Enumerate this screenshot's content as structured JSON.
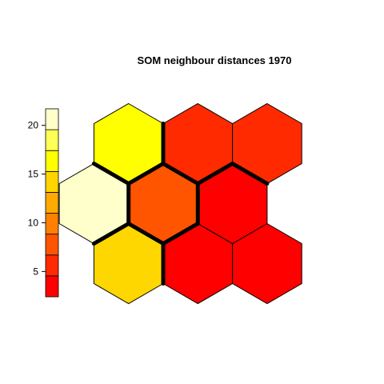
{
  "chart_data": {
    "type": "heatmap",
    "title": "SOM neighbour distances 1970",
    "grid": {
      "rows": 3,
      "cols": 3,
      "topology": "hexagonal"
    },
    "cells": [
      {
        "row": 0,
        "col": 0,
        "value": 12.0,
        "color": "#FFD700"
      },
      {
        "row": 0,
        "col": 1,
        "value": 2.5,
        "color": "#FF0000"
      },
      {
        "row": 0,
        "col": 2,
        "value": 2.5,
        "color": "#FF0000"
      },
      {
        "row": 1,
        "col": 0,
        "value": 21.0,
        "color": "#FFFFCC"
      },
      {
        "row": 1,
        "col": 1,
        "value": 7.0,
        "color": "#FF5500"
      },
      {
        "row": 1,
        "col": 2,
        "value": 3.0,
        "color": "#FF0000"
      },
      {
        "row": 2,
        "col": 0,
        "value": 17.0,
        "color": "#FFFF00"
      },
      {
        "row": 2,
        "col": 1,
        "value": 5.5,
        "color": "#FF2A00"
      },
      {
        "row": 2,
        "col": 2,
        "value": 5.0,
        "color": "#FF2A00"
      }
    ],
    "colorbar": {
      "range": [
        2.4,
        21.7
      ],
      "ticks": [
        5,
        10,
        15,
        20
      ],
      "colors": [
        "#FF0000",
        "#FF2A00",
        "#FF5500",
        "#FF8000",
        "#FFAA00",
        "#FFD400",
        "#FFFF00",
        "#FFFF55",
        "#FFFFCC"
      ]
    },
    "borders": [
      {
        "a": [
          1,
          0
        ],
        "b": [
          2,
          0
        ]
      },
      {
        "a": [
          1,
          0
        ],
        "b": [
          1,
          1
        ]
      },
      {
        "a": [
          1,
          0
        ],
        "b": [
          0,
          0
        ]
      },
      {
        "a": [
          2,
          0
        ],
        "b": [
          1,
          1
        ]
      },
      {
        "a": [
          2,
          0
        ],
        "b": [
          2,
          1
        ]
      },
      {
        "a": [
          1,
          1
        ],
        "b": [
          2,
          1
        ]
      },
      {
        "a": [
          1,
          1
        ],
        "b": [
          1,
          2
        ]
      },
      {
        "a": [
          1,
          1
        ],
        "b": [
          0,
          0
        ]
      },
      {
        "a": [
          1,
          1
        ],
        "b": [
          0,
          1
        ]
      },
      {
        "a": [
          0,
          0
        ],
        "b": [
          0,
          1
        ]
      },
      {
        "a": [
          2,
          1
        ],
        "b": [
          1,
          2
        ]
      },
      {
        "a": [
          1,
          2
        ],
        "b": [
          2,
          2
        ]
      }
    ]
  }
}
